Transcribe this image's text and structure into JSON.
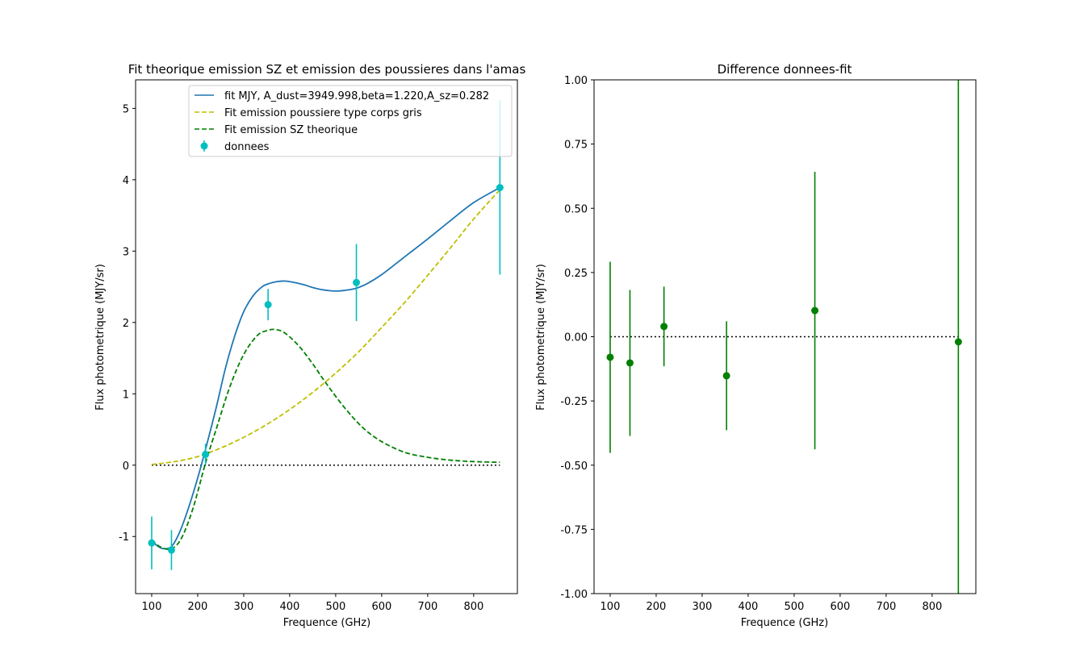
{
  "chart_data": [
    {
      "type": "line",
      "title": "Fit theorique emission SZ et emission des poussieres dans l'amas",
      "xlabel": "Frequence (GHz)",
      "ylabel": "Flux photometrique (MJY/sr)",
      "xlim": [
        65,
        895
      ],
      "ylim": [
        -1.8,
        5.4
      ],
      "xticks": [
        100,
        200,
        300,
        400,
        500,
        600,
        700,
        800
      ],
      "yticks": [
        -1,
        0,
        1,
        2,
        3,
        4,
        5
      ],
      "grid": false,
      "legend_position": "top-right",
      "zero_line": {
        "y": 0,
        "x_range": [
          100,
          857
        ],
        "style": "dotted",
        "color": "#000000"
      },
      "series": [
        {
          "name": "fit MJY, A_dust=3949.998,beta=1.220,A_sz=0.282",
          "style": "solid",
          "color": "#1f77b4",
          "x": [
            100,
            110,
            125,
            143,
            160,
            180,
            200,
            217,
            240,
            260,
            280,
            300,
            320,
            340,
            353,
            370,
            390,
            410,
            430,
            450,
            470,
            500,
            520,
            545,
            570,
            600,
            650,
            700,
            750,
            800,
            857
          ],
          "y": [
            -1.04,
            -1.12,
            -1.17,
            -1.14,
            -0.95,
            -0.6,
            -0.18,
            0.22,
            0.8,
            1.35,
            1.8,
            2.15,
            2.37,
            2.5,
            2.54,
            2.57,
            2.58,
            2.56,
            2.53,
            2.49,
            2.46,
            2.44,
            2.45,
            2.48,
            2.55,
            2.67,
            2.92,
            3.17,
            3.43,
            3.68,
            3.89
          ]
        },
        {
          "name": "Fit emission poussiere type corps gris",
          "style": "dashed",
          "color": "#bfbf00",
          "x": [
            100,
            150,
            200,
            250,
            300,
            350,
            400,
            450,
            500,
            550,
            600,
            650,
            700,
            750,
            800,
            857
          ],
          "y": [
            0.01,
            0.05,
            0.12,
            0.24,
            0.39,
            0.57,
            0.78,
            1.02,
            1.29,
            1.59,
            1.93,
            2.28,
            2.66,
            3.05,
            3.45,
            3.86
          ]
        },
        {
          "name": "Fit emission SZ theorique",
          "style": "dashed",
          "color": "#008000",
          "x": [
            100,
            120,
            143,
            165,
            190,
            217,
            240,
            270,
            300,
            330,
            353,
            370,
            390,
            420,
            450,
            480,
            520,
            560,
            600,
            650,
            700,
            750,
            800,
            857
          ],
          "y": [
            -1.05,
            -1.15,
            -1.17,
            -1.02,
            -0.6,
            0.03,
            0.5,
            1.1,
            1.55,
            1.82,
            1.89,
            1.9,
            1.85,
            1.67,
            1.42,
            1.14,
            0.8,
            0.52,
            0.33,
            0.18,
            0.11,
            0.07,
            0.05,
            0.04
          ]
        },
        {
          "name": "donnees",
          "type": "errorbar",
          "color": "#00bfbf",
          "x": [
            100,
            143,
            217,
            353,
            545,
            857
          ],
          "y": [
            -1.09,
            -1.19,
            0.15,
            2.25,
            2.56,
            3.89
          ],
          "yerr": [
            0.37,
            0.28,
            0.15,
            0.22,
            0.54,
            1.22
          ]
        }
      ]
    },
    {
      "type": "scatter",
      "title": "Difference donnees-fit",
      "xlabel": "Frequence (GHz)",
      "ylabel": "Flux photometrique (MJY/sr)",
      "xlim": [
        65,
        895
      ],
      "ylim": [
        -1.0,
        1.0
      ],
      "xticks": [
        100,
        200,
        300,
        400,
        500,
        600,
        700,
        800
      ],
      "yticks": [
        "-1.00",
        "-0.75",
        "-0.50",
        "-0.25",
        "0.00",
        "0.25",
        "0.50",
        "0.75",
        "1.00"
      ],
      "grid": false,
      "zero_line": {
        "y": 0,
        "x_range": [
          100,
          857
        ],
        "style": "dotted",
        "color": "#000000"
      },
      "series": [
        {
          "type": "errorbar",
          "color": "#008000",
          "x": [
            100,
            143,
            217,
            353,
            545,
            857
          ],
          "y": [
            -0.08,
            -0.102,
            0.04,
            -0.152,
            0.102,
            -0.02
          ],
          "yerr": [
            0.372,
            0.284,
            0.155,
            0.212,
            0.54,
            1.22
          ]
        }
      ]
    }
  ]
}
